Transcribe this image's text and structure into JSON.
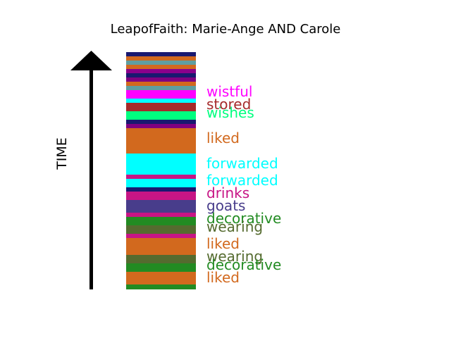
{
  "title": "LeapofFaith: Marie-Ange AND Carole",
  "axis_label": "TIME",
  "labels": [
    {
      "text": "wistful",
      "color": "#ff00ff"
    },
    {
      "text": "stored",
      "color": "#a52a2a"
    },
    {
      "text": "wishes",
      "color": "#00ff7f"
    },
    {
      "text": "liked",
      "color": "#d2691e"
    },
    {
      "text": "forwarded",
      "color": "#00ffff"
    },
    {
      "text": "forwarded",
      "color": "#00ffff"
    },
    {
      "text": "drinks",
      "color": "#c71585"
    },
    {
      "text": "goats",
      "color": "#483d8b"
    },
    {
      "text": "decorative",
      "color": "#228b22"
    },
    {
      "text": "wearing",
      "color": "#556b2f"
    },
    {
      "text": "liked",
      "color": "#d2691e"
    },
    {
      "text": "wearing",
      "color": "#556b2f"
    },
    {
      "text": "decorative",
      "color": "#228b22"
    },
    {
      "text": "liked",
      "color": "#d2691e"
    }
  ],
  "bands": [
    {
      "color": "#191970",
      "size": 6
    },
    {
      "color": "#d2691e",
      "size": 6
    },
    {
      "color": "#5f9ea0",
      "size": 6
    },
    {
      "color": "#d2691e",
      "size": 6
    },
    {
      "color": "#8b008b",
      "size": 6
    },
    {
      "color": "#191970",
      "size": 6
    },
    {
      "color": "#800080",
      "size": 6
    },
    {
      "color": "#d2691e",
      "size": 6
    },
    {
      "color": "#5f9ea0",
      "size": 6
    },
    {
      "color": "#ff00ff",
      "size": 12
    },
    {
      "color": "#00ffff",
      "size": 6
    },
    {
      "color": "#a52a2a",
      "size": 12
    },
    {
      "color": "#00ff7f",
      "size": 12
    },
    {
      "color": "#191970",
      "size": 6
    },
    {
      "color": "#800080",
      "size": 6
    },
    {
      "color": "#d2691e",
      "size": 36
    },
    {
      "color": "#00ffff",
      "size": 30
    },
    {
      "color": "#c71585",
      "size": 6
    },
    {
      "color": "#00ffff",
      "size": 12
    },
    {
      "color": "#191970",
      "size": 6
    },
    {
      "color": "#c71585",
      "size": 12
    },
    {
      "color": "#483d8b",
      "size": 18
    },
    {
      "color": "#c71585",
      "size": 6
    },
    {
      "color": "#228b22",
      "size": 12
    },
    {
      "color": "#556b2f",
      "size": 12
    },
    {
      "color": "#c71585",
      "size": 6
    },
    {
      "color": "#d2691e",
      "size": 24
    },
    {
      "color": "#556b2f",
      "size": 12
    },
    {
      "color": "#228b22",
      "size": 12
    },
    {
      "color": "#d2691e",
      "size": 18
    },
    {
      "color": "#228b22",
      "size": 6
    }
  ]
}
